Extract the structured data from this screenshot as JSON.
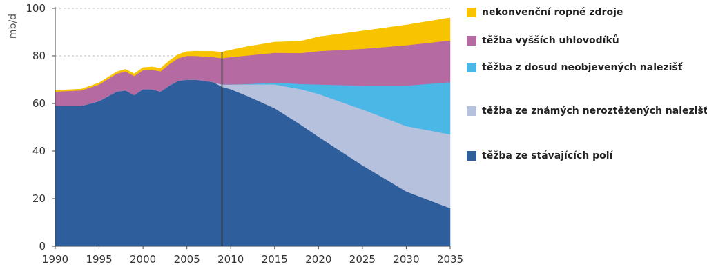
{
  "chart_data": {
    "type": "area",
    "ylabel": "mb/d",
    "xlabel": "",
    "title": "",
    "xlim": [
      1990,
      2035
    ],
    "ylim": [
      0,
      100
    ],
    "x_ticks": [
      1990,
      1995,
      2000,
      2005,
      2010,
      2015,
      2020,
      2025,
      2030,
      2035
    ],
    "y_ticks": [
      0,
      20,
      40,
      60,
      80,
      100
    ],
    "dashed_gridlines_at": [
      80,
      100
    ],
    "marker_year": 2009,
    "legend_position": "right",
    "x": [
      1990,
      1993,
      1995,
      1997,
      1998,
      1999,
      2000,
      2001,
      2002,
      2003,
      2004,
      2005,
      2006,
      2007,
      2008,
      2009,
      2010,
      2012,
      2015,
      2018,
      2020,
      2025,
      2030,
      2035
    ],
    "series": [
      {
        "name": "těžba ze stávajících polí",
        "color": "#2e5e9c",
        "values": [
          59,
          59,
          61,
          65,
          65.5,
          63.5,
          66,
          66,
          65,
          67.5,
          69.5,
          70,
          70,
          69.5,
          69,
          67,
          66,
          63,
          58,
          51,
          46,
          34,
          23,
          16
        ]
      },
      {
        "name": "těžba ze známých neroztěžených nalezišť",
        "color": "#b6c1de",
        "values": [
          0,
          0,
          0,
          0,
          0,
          0,
          0,
          0,
          0,
          0,
          0,
          0,
          0,
          0,
          0,
          1,
          2,
          5,
          10,
          15,
          18,
          23.5,
          27.5,
          31
        ]
      },
      {
        "name": "těžba z dosud neobjevených nalezišť",
        "color": "#4ab7e6",
        "values": [
          0,
          0,
          0,
          0,
          0,
          0,
          0,
          0,
          0,
          0,
          0,
          0,
          0,
          0,
          0,
          0,
          0,
          0.2,
          0.8,
          2.2,
          4,
          10,
          17,
          22
        ]
      },
      {
        "name": "těžba vyšších uhlovodíků",
        "color": "#b56aa1",
        "values": [
          6,
          6.5,
          7,
          7.5,
          8,
          8,
          8,
          8.2,
          8.5,
          9,
          9.5,
          10,
          10,
          10.2,
          10.5,
          11,
          11.5,
          12,
          12.5,
          13,
          14,
          15.5,
          17,
          17.5
        ]
      },
      {
        "name": "nekonvenční ropné zdroje",
        "color": "#f8c300",
        "values": [
          0.5,
          0.6,
          0.7,
          0.8,
          0.9,
          1,
          1.1,
          1.2,
          1.3,
          1.4,
          1.6,
          1.8,
          2,
          2.2,
          2.4,
          2.6,
          3,
          3.8,
          4.5,
          5,
          6,
          7.5,
          8.5,
          9.5
        ]
      }
    ]
  },
  "legend": {
    "items": [
      {
        "label": "nekonvenční ropné zdroje",
        "color": "#f8c300"
      },
      {
        "label": "těžba vyšších uhlovodíků",
        "color": "#b56aa1"
      },
      {
        "label": "těžba z dosud neobjevených nalezišť",
        "color": "#4ab7e6"
      },
      {
        "label": "těžba ze známých neroztěžených nalezišť",
        "color": "#b6c1de"
      },
      {
        "label": "těžba ze stávajících polí",
        "color": "#2e5e9c"
      }
    ]
  }
}
